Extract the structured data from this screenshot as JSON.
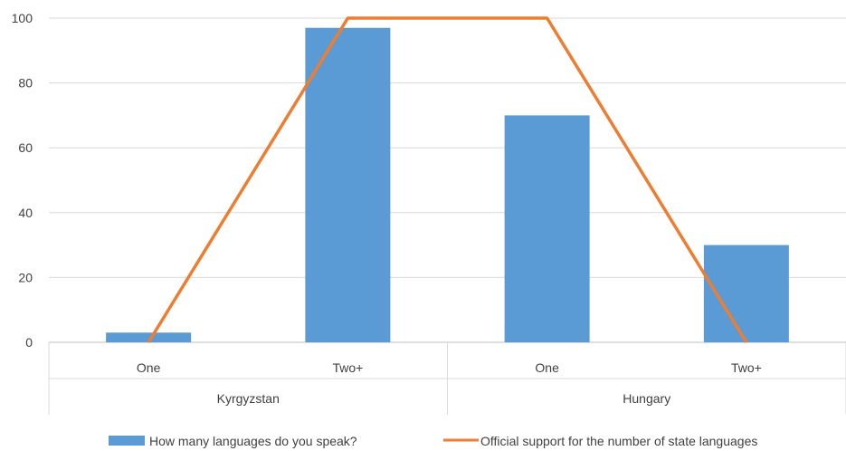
{
  "chart_data": {
    "type": "bar",
    "title": "",
    "xlabel": "",
    "ylabel": "",
    "ylim": [
      0,
      100
    ],
    "yticks": [
      "0",
      "20",
      "40",
      "60",
      "80",
      "100"
    ],
    "grid": "horizontal",
    "legend_position": "bottom",
    "groups": [
      {
        "label": "Kyrgyzstan",
        "categories": [
          "One",
          "Two+"
        ]
      },
      {
        "label": "Hungary",
        "categories": [
          "One",
          "Two+"
        ]
      }
    ],
    "categories": [
      "One",
      "Two+",
      "One",
      "Two+"
    ],
    "series": [
      {
        "name": "How many languages do you speak?",
        "type": "bar",
        "color": "#5B9BD5",
        "values": [
          3,
          97,
          70,
          30
        ]
      },
      {
        "name": "Official support for the number of state languages",
        "type": "line",
        "color": "#ED7D31",
        "values": [
          0,
          100,
          100,
          0
        ]
      }
    ]
  }
}
